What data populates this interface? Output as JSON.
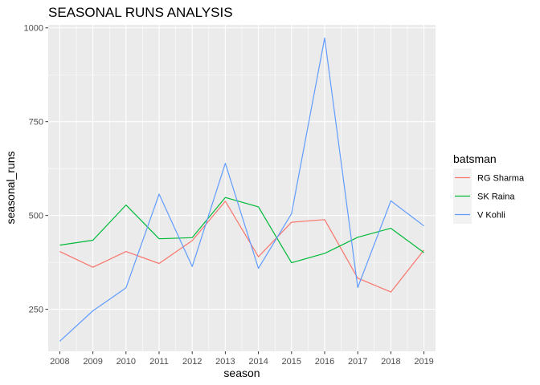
{
  "chart_data": {
    "type": "line",
    "title": "SEASONAL RUNS ANALYSIS",
    "xlabel": "season",
    "ylabel": "seasonal_runs",
    "x": [
      2008,
      2009,
      2010,
      2011,
      2012,
      2013,
      2014,
      2015,
      2016,
      2017,
      2018,
      2019
    ],
    "xlim": [
      2007.65,
      2019.35
    ],
    "ylim": [
      138,
      1008
    ],
    "y_ticks": [
      250,
      500,
      750,
      1000
    ],
    "y_minor_ticks": [
      375,
      625,
      875
    ],
    "grid": true,
    "legend": {
      "title": "batsman",
      "position": "right"
    },
    "series": [
      {
        "name": "RG Sharma",
        "color": "#F8766D",
        "values": [
          404,
          362,
          404,
          372,
          433,
          538,
          390,
          482,
          489,
          333,
          296,
          408
        ]
      },
      {
        "name": "SK Raina",
        "color": "#00BA38",
        "values": [
          421,
          434,
          528,
          438,
          441,
          548,
          523,
          374,
          399,
          442,
          466,
          401
        ]
      },
      {
        "name": "V Kohli",
        "color": "#619CFF",
        "values": [
          165,
          246,
          307,
          557,
          364,
          639,
          359,
          505,
          973,
          308,
          539,
          472
        ]
      }
    ]
  }
}
